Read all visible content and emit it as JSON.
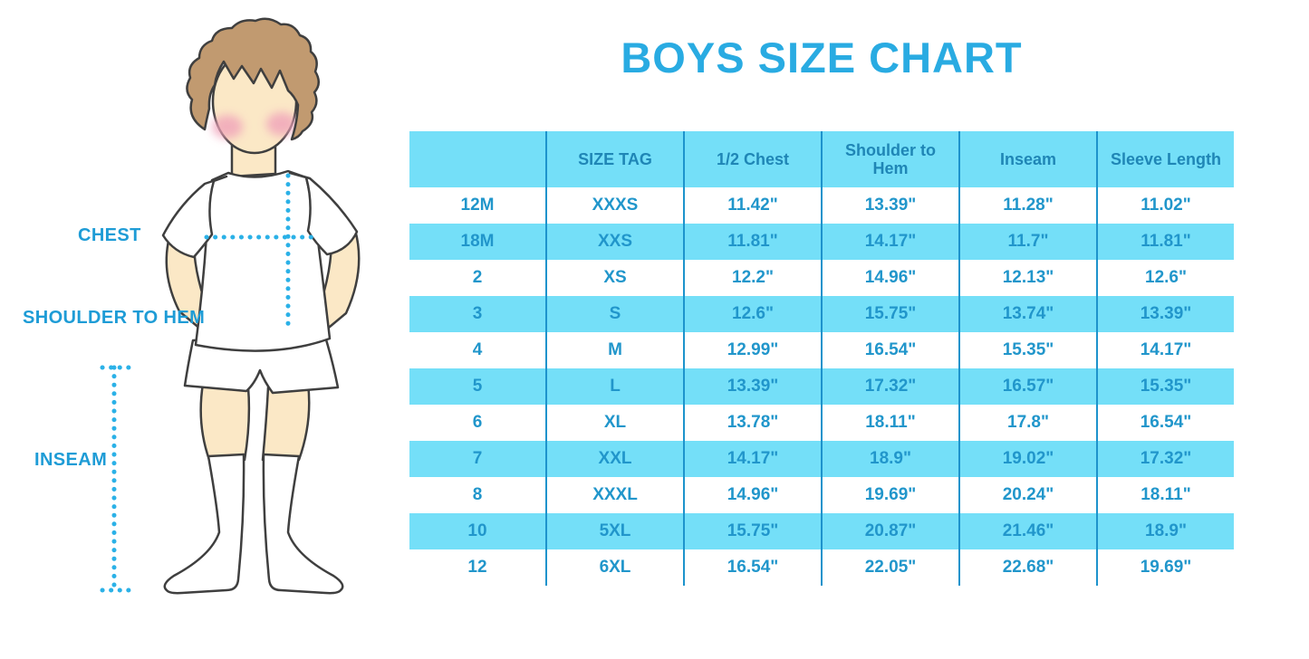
{
  "title": "BOYS SIZE CHART",
  "colors": {
    "accent_blue": "#29ABE2",
    "table_fill": "#74DFF8",
    "column_line": "#1D93CC",
    "cell_text": "#2196CB",
    "header_text": "#1F86B6",
    "label_text": "#1E9CD6",
    "dotted_line": "#2BB1E7",
    "skin": "#FBE8C6",
    "hair": "#C19A70",
    "cheek": "#F0A3BA"
  },
  "figure": {
    "description": "boy-in-tshirt-shorts-and-socks-illustration",
    "labels": {
      "chest": "CHEST",
      "shoulder_to_hem": "SHOULDER TO HEM",
      "inseam": "INSEAM"
    }
  },
  "chart_data": {
    "type": "table",
    "title": "BOYS SIZE CHART",
    "columns": [
      "",
      "SIZE TAG",
      "1/2 Chest",
      "Shoulder to Hem",
      "Inseam",
      "Sleeve Length"
    ],
    "rows": [
      [
        "12M",
        "XXXS",
        "11.42\"",
        "13.39\"",
        "11.28\"",
        "11.02\""
      ],
      [
        "18M",
        "XXS",
        "11.81\"",
        "14.17\"",
        "11.7\"",
        "11.81\""
      ],
      [
        "2",
        "XS",
        "12.2\"",
        "14.96\"",
        "12.13\"",
        "12.6\""
      ],
      [
        "3",
        "S",
        "12.6\"",
        "15.75\"",
        "13.74\"",
        "13.39\""
      ],
      [
        "4",
        "M",
        "12.99\"",
        "16.54\"",
        "15.35\"",
        "14.17\""
      ],
      [
        "5",
        "L",
        "13.39\"",
        "17.32\"",
        "16.57\"",
        "15.35\""
      ],
      [
        "6",
        "XL",
        "13.78\"",
        "18.11\"",
        "17.8\"",
        "16.54\""
      ],
      [
        "7",
        "XXL",
        "14.17\"",
        "18.9\"",
        "19.02\"",
        "17.32\""
      ],
      [
        "8",
        "XXXL",
        "14.96\"",
        "19.69\"",
        "20.24\"",
        "18.11\""
      ],
      [
        "10",
        "5XL",
        "15.75\"",
        "20.87\"",
        "21.46\"",
        "18.9\""
      ],
      [
        "12",
        "6XL",
        "16.54\"",
        "22.05\"",
        "22.68\"",
        "19.69\""
      ]
    ],
    "shaded_row_indices": [
      1,
      3,
      5,
      7,
      9
    ],
    "layout": "header row + 11 data rows, alternating cyan/white shading, cyan column separator lines"
  }
}
